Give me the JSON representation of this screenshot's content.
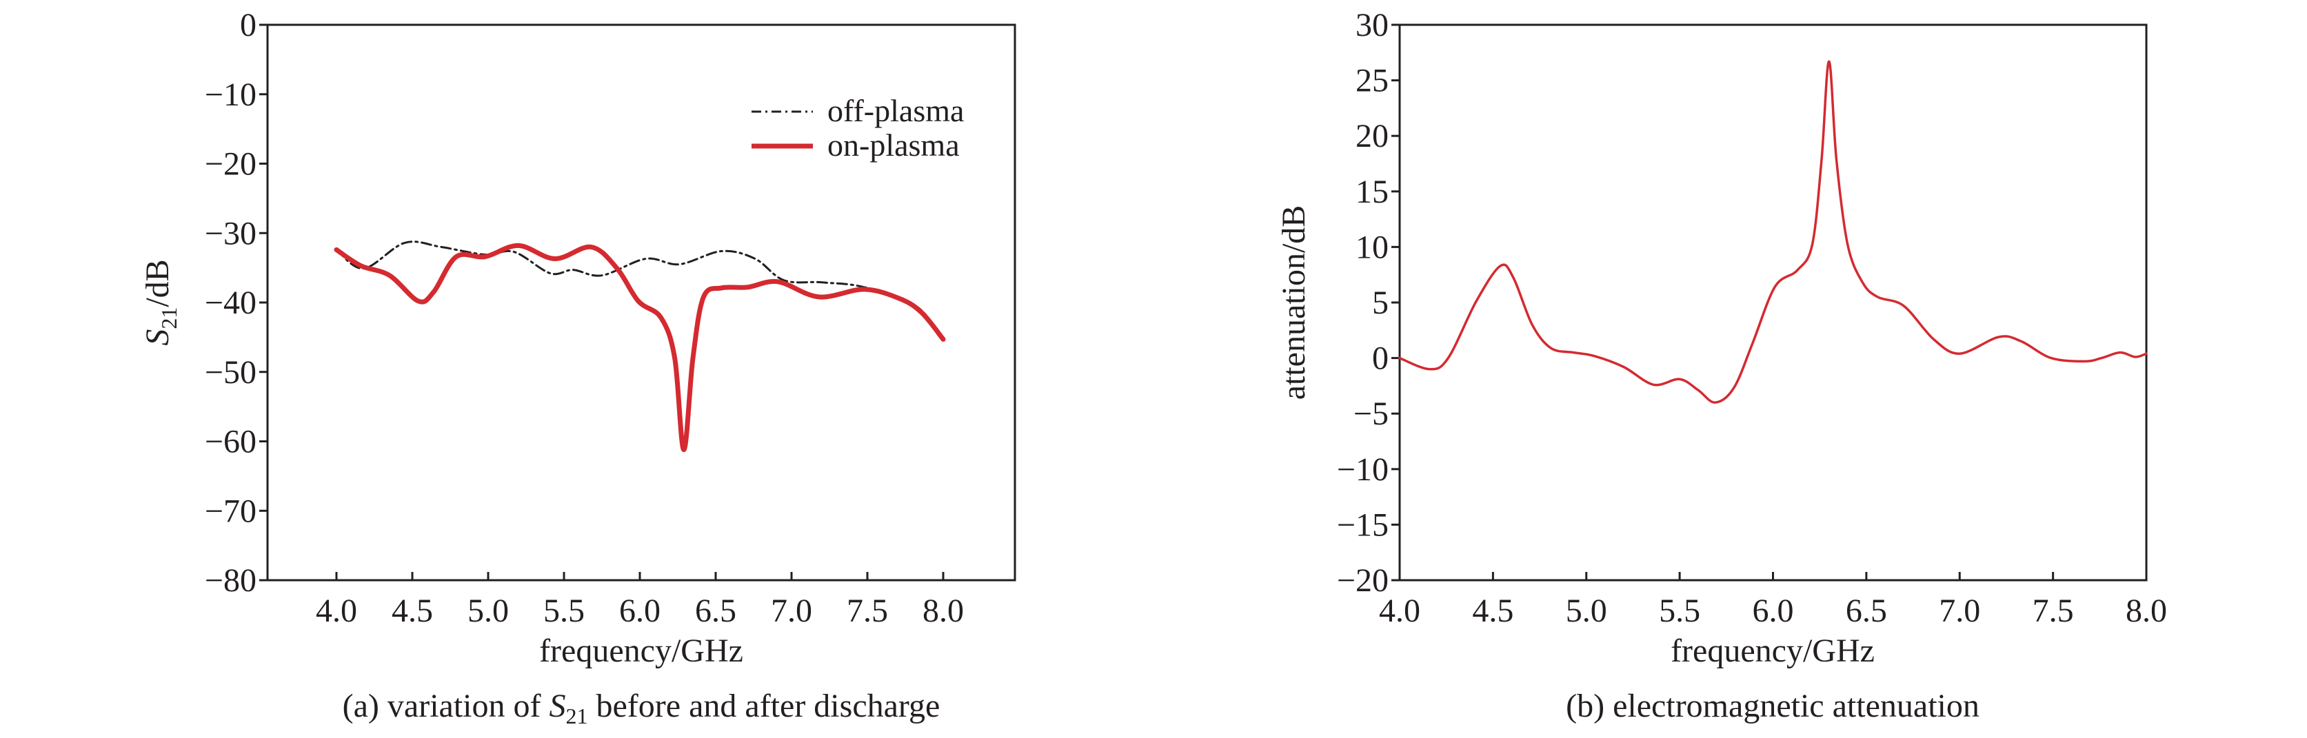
{
  "chart_data": [
    {
      "type": "line",
      "caption_prefix": "(a) variation of ",
      "caption_symbol": "S",
      "caption_sub": "21",
      "caption_suffix": " before and after discharge",
      "xlabel": "frequency/GHz",
      "ylabel_symbol": "S",
      "ylabel_sub": "21",
      "ylabel_suffix": "/dB",
      "xlim": [
        3.55,
        8.5
      ],
      "ylim": [
        -80,
        0
      ],
      "xticks": [
        "4.0",
        "4.5",
        "5.0",
        "5.5",
        "6.0",
        "6.5",
        "7.0",
        "7.5",
        "8.0"
      ],
      "yticks": [
        "0",
        "−10",
        "−20",
        "−30",
        "−40",
        "−50",
        "−60",
        "−70",
        "−80"
      ],
      "grid": false,
      "legend_position": "top-right",
      "series": [
        {
          "name": "off-plasma",
          "color": "#231f20",
          "style": "dash-dot",
          "x": [
            4.0,
            4.18,
            4.45,
            4.69,
            4.98,
            5.17,
            5.41,
            5.56,
            5.75,
            6.04,
            6.26,
            6.54,
            6.76,
            6.95,
            7.2,
            7.48,
            7.82,
            8.0
          ],
          "y": [
            -32.4,
            -35.1,
            -31.4,
            -32.0,
            -33.1,
            -32.7,
            -35.8,
            -35.3,
            -36.1,
            -33.7,
            -34.5,
            -32.6,
            -33.7,
            -36.8,
            -37.1,
            -37.8,
            -40.5,
            -45.3
          ]
        },
        {
          "name": "on-plasma",
          "color": "#d42a30",
          "style": "solid",
          "x": [
            4.0,
            4.16,
            4.35,
            4.54,
            4.64,
            4.79,
            4.98,
            5.2,
            5.44,
            5.68,
            5.85,
            5.99,
            6.14,
            6.23,
            6.29,
            6.35,
            6.42,
            6.54,
            6.71,
            6.91,
            7.18,
            7.48,
            7.72,
            7.86,
            8.0
          ],
          "y": [
            -32.4,
            -34.7,
            -36.1,
            -39.8,
            -38.5,
            -33.4,
            -33.4,
            -31.8,
            -33.7,
            -32.0,
            -35.1,
            -39.8,
            -42.2,
            -48.0,
            -61.2,
            -48.0,
            -39.2,
            -37.9,
            -37.8,
            -37.0,
            -39.2,
            -38.1,
            -39.5,
            -41.5,
            -45.3
          ]
        }
      ]
    },
    {
      "type": "line",
      "caption": "(b) electromagnetic attenuation",
      "xlabel": "frequency/GHz",
      "ylabel": "attenuation/dB",
      "xlim": [
        4.0,
        8.0
      ],
      "ylim": [
        -20,
        30
      ],
      "xticks": [
        "4.0",
        "4.5",
        "5.0",
        "5.5",
        "6.0",
        "6.5",
        "7.0",
        "7.5",
        "8.0"
      ],
      "yticks": [
        "30",
        "25",
        "20",
        "15",
        "10",
        "5",
        "0",
        "−5",
        "−10",
        "−15",
        "−20"
      ],
      "grid": false,
      "series": [
        {
          "color": "#d42a30",
          "style": "solid",
          "x": [
            4.0,
            4.16,
            4.26,
            4.41,
            4.54,
            4.61,
            4.71,
            4.81,
            4.93,
            5.04,
            5.2,
            5.36,
            5.5,
            5.6,
            5.69,
            5.79,
            5.89,
            6.01,
            6.13,
            6.21,
            6.26,
            6.3,
            6.34,
            6.4,
            6.48,
            6.56,
            6.7,
            6.86,
            7.0,
            7.21,
            7.33,
            7.49,
            7.67,
            7.76,
            7.86,
            7.94,
            8.0
          ],
          "y": [
            0.0,
            -1.0,
            0.0,
            5.1,
            8.3,
            7.2,
            3.0,
            0.9,
            0.5,
            0.2,
            -0.8,
            -2.4,
            -1.9,
            -2.9,
            -4.0,
            -2.7,
            1.3,
            6.4,
            7.9,
            10.2,
            17.8,
            26.7,
            17.8,
            10.2,
            6.8,
            5.5,
            4.7,
            1.7,
            0.4,
            1.9,
            1.5,
            0.0,
            -0.3,
            0.0,
            0.5,
            0.1,
            0.4
          ]
        }
      ]
    }
  ]
}
